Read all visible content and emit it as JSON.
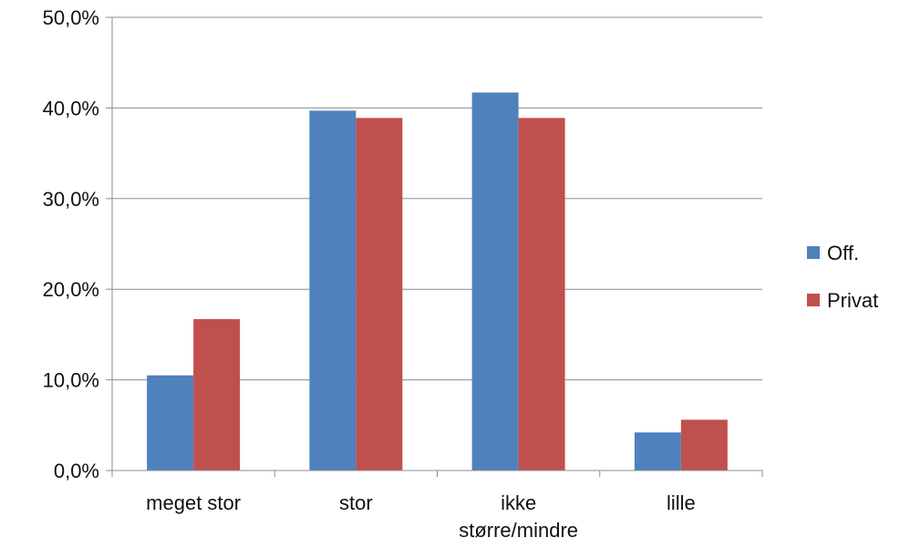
{
  "chart_data": {
    "type": "bar",
    "categories": [
      [
        "meget stor"
      ],
      [
        "stor"
      ],
      [
        "ikke",
        "større/mindre"
      ],
      [
        "lille"
      ]
    ],
    "series": [
      {
        "name": "Off.",
        "color": "#4f81bd",
        "values": [
          10.5,
          39.7,
          41.7,
          4.2
        ]
      },
      {
        "name": "Privat",
        "color": "#c0504d",
        "values": [
          16.7,
          38.9,
          38.9,
          5.6
        ]
      }
    ],
    "y_ticks": [
      "0,0%",
      "10,0%",
      "20,0%",
      "30,0%",
      "40,0%",
      "50,0%"
    ],
    "ylim": [
      0,
      50
    ],
    "grid": true,
    "legend_position": "right"
  }
}
